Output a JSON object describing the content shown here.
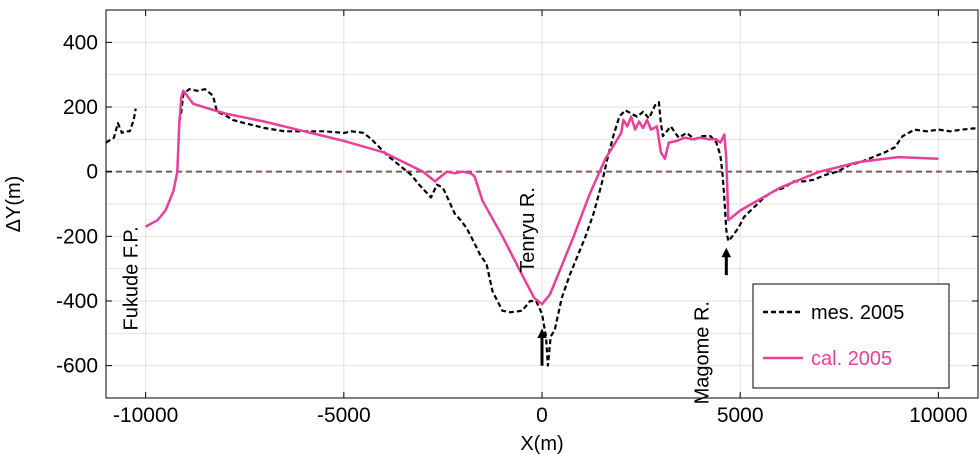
{
  "chart_data": {
    "type": "line",
    "xlabel": "X(m)",
    "ylabel": "ΔY(m)",
    "xlim": [
      -11000,
      11000
    ],
    "ylim": [
      -700,
      500
    ],
    "xticks": [
      -10000,
      -5000,
      0,
      5000,
      10000
    ],
    "xtick_labels": [
      "-10000",
      "-5000",
      "0",
      "5000",
      "10000"
    ],
    "yticks": [
      -600,
      -400,
      -200,
      0,
      200,
      400
    ],
    "ytick_labels": [
      "-600",
      "-400",
      "-200",
      "0",
      "200",
      "400"
    ],
    "grid": true,
    "legend_position": "bottom-right",
    "reference_line": {
      "y": 0,
      "color": "#7a5c50",
      "style": "dashed"
    },
    "series": [
      {
        "name": "mes. 2005",
        "color": "#000000",
        "style": "dashed",
        "segments": [
          [
            [
              -11000,
              90
            ],
            [
              -10800,
              105
            ],
            [
              -10700,
              150
            ],
            [
              -10600,
              120
            ],
            [
              -10500,
              125
            ],
            [
              -10400,
              125
            ],
            [
              -10300,
              160
            ],
            [
              -10250,
              195
            ]
          ],
          [
            [
              -9150,
              155
            ],
            [
              -9100,
              185
            ],
            [
              -9050,
              240
            ],
            [
              -8900,
              255
            ],
            [
              -8700,
              250
            ],
            [
              -8500,
              255
            ],
            [
              -8300,
              235
            ],
            [
              -8200,
              185
            ],
            [
              -8000,
              175
            ],
            [
              -7800,
              160
            ],
            [
              -7500,
              150
            ],
            [
              -7000,
              135
            ],
            [
              -6500,
              125
            ],
            [
              -6000,
              125
            ],
            [
              -5500,
              125
            ],
            [
              -5000,
              120
            ],
            [
              -4800,
              125
            ],
            [
              -4500,
              120
            ],
            [
              -4300,
              100
            ],
            [
              -4100,
              75
            ],
            [
              -3900,
              50
            ],
            [
              -3600,
              20
            ],
            [
              -3300,
              -10
            ],
            [
              -3100,
              -40
            ],
            [
              -2950,
              -60
            ],
            [
              -2800,
              -80
            ],
            [
              -2650,
              -40
            ],
            [
              -2500,
              -50
            ],
            [
              -2350,
              -90
            ],
            [
              -2200,
              -130
            ],
            [
              -2050,
              -150
            ],
            [
              -1900,
              -175
            ],
            [
              -1750,
              -210
            ],
            [
              -1550,
              -260
            ],
            [
              -1400,
              -285
            ],
            [
              -1250,
              -370
            ],
            [
              -1000,
              -430
            ],
            [
              -800,
              -435
            ],
            [
              -500,
              -430
            ],
            [
              -300,
              -400
            ],
            [
              -150,
              -400
            ],
            [
              0,
              -440
            ],
            [
              100,
              -510
            ],
            [
              150,
              -600
            ],
            [
              220,
              -510
            ],
            [
              320,
              -490
            ],
            [
              500,
              -390
            ],
            [
              700,
              -320
            ],
            [
              900,
              -260
            ],
            [
              1100,
              -200
            ],
            [
              1300,
              -130
            ],
            [
              1500,
              -40
            ],
            [
              1650,
              40
            ],
            [
              1800,
              110
            ],
            [
              1950,
              170
            ],
            [
              2100,
              190
            ],
            [
              2250,
              180
            ],
            [
              2400,
              170
            ],
            [
              2550,
              185
            ],
            [
              2700,
              165
            ],
            [
              2850,
              205
            ],
            [
              2950,
              215
            ],
            [
              3000,
              150
            ],
            [
              3050,
              110
            ],
            [
              3250,
              140
            ],
            [
              3450,
              105
            ],
            [
              3650,
              120
            ],
            [
              3850,
              100
            ],
            [
              4050,
              110
            ],
            [
              4250,
              110
            ],
            [
              4400,
              90
            ],
            [
              4500,
              50
            ],
            [
              4550,
              0
            ],
            [
              4600,
              -80
            ],
            [
              4650,
              -180
            ],
            [
              4700,
              -215
            ],
            [
              4800,
              -200
            ],
            [
              4950,
              -175
            ],
            [
              5100,
              -140
            ],
            [
              5350,
              -110
            ],
            [
              5600,
              -80
            ],
            [
              5850,
              -60
            ],
            [
              6100,
              -50
            ],
            [
              6350,
              -30
            ],
            [
              6600,
              -30
            ],
            [
              6850,
              -25
            ],
            [
              7150,
              -10
            ],
            [
              7450,
              0
            ],
            [
              7750,
              20
            ],
            [
              8050,
              30
            ],
            [
              8350,
              45
            ],
            [
              8650,
              60
            ],
            [
              8900,
              75
            ],
            [
              9100,
              110
            ],
            [
              9400,
              130
            ],
            [
              9700,
              125
            ],
            [
              10000,
              130
            ],
            [
              10300,
              125
            ],
            [
              10600,
              130
            ],
            [
              11000,
              135
            ]
          ]
        ]
      },
      {
        "name": "cal. 2005",
        "color": "#e8409a",
        "style": "solid",
        "segments": [
          [
            [
              -10000,
              -170
            ],
            [
              -9700,
              -150
            ],
            [
              -9500,
              -120
            ],
            [
              -9300,
              -60
            ],
            [
              -9200,
              0
            ],
            [
              -9150,
              150
            ],
            [
              -9100,
              230
            ],
            [
              -9050,
              250
            ],
            [
              -8800,
              210
            ],
            [
              -8000,
              180
            ],
            [
              -7000,
              155
            ],
            [
              -6000,
              125
            ],
            [
              -5000,
              95
            ],
            [
              -4000,
              60
            ],
            [
              -3000,
              0
            ],
            [
              -2700,
              -30
            ],
            [
              -2600,
              -20
            ],
            [
              -2400,
              0
            ],
            [
              -2200,
              -5
            ],
            [
              -2000,
              0
            ],
            [
              -1800,
              -5
            ],
            [
              -1700,
              -15
            ],
            [
              -1500,
              -90
            ],
            [
              -1000,
              -200
            ],
            [
              -500,
              -320
            ],
            [
              -200,
              -390
            ],
            [
              0,
              -410
            ],
            [
              200,
              -380
            ],
            [
              400,
              -320
            ],
            [
              800,
              -200
            ],
            [
              1200,
              -70
            ],
            [
              1600,
              40
            ],
            [
              2000,
              120
            ],
            [
              2050,
              160
            ],
            [
              2150,
              140
            ],
            [
              2250,
              170
            ],
            [
              2350,
              130
            ],
            [
              2450,
              155
            ],
            [
              2550,
              135
            ],
            [
              2650,
              160
            ],
            [
              2750,
              130
            ],
            [
              2900,
              140
            ],
            [
              3000,
              60
            ],
            [
              3100,
              40
            ],
            [
              3200,
              90
            ],
            [
              3400,
              95
            ],
            [
              3600,
              105
            ],
            [
              3800,
              100
            ],
            [
              4000,
              105
            ],
            [
              4200,
              100
            ],
            [
              4400,
              100
            ],
            [
              4500,
              90
            ],
            [
              4600,
              115
            ],
            [
              4650,
              40
            ],
            [
              4700,
              -150
            ],
            [
              5000,
              -120
            ],
            [
              6000,
              -50
            ],
            [
              7000,
              0
            ],
            [
              8000,
              30
            ],
            [
              9000,
              45
            ],
            [
              10000,
              40
            ]
          ]
        ]
      }
    ],
    "annotations": [
      {
        "text": "Fukude F.P.",
        "x": -10200,
        "y": -330,
        "rotation": -90
      },
      {
        "text": "Tenryu R.",
        "x": -200,
        "y": -180,
        "rotation": -90
      },
      {
        "text": "Magome R.",
        "x": 4200,
        "y": -560,
        "rotation": -90
      }
    ],
    "arrows": [
      {
        "x": 0,
        "y_from": -600,
        "y_to": -500
      },
      {
        "x": 4650,
        "y_from": -320,
        "y_to": -250
      }
    ]
  }
}
